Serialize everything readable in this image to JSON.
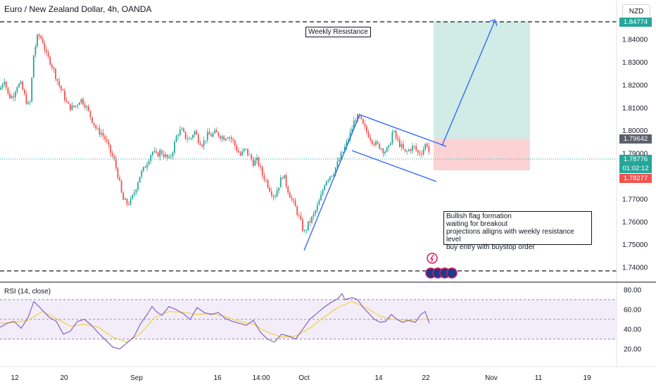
{
  "header": {
    "title": "Euro / New Zealand Dollar, 4h, OANDA",
    "currency_button": "NZD"
  },
  "annotations": {
    "weekly_resistance": "Weekly Resistance",
    "analysis_lines": [
      "Bullish flag formation",
      "waiting for breakout",
      "projections alligns with weekly resistance level",
      "buy entry with buystop order"
    ]
  },
  "price_badges": {
    "target": "1.84774",
    "entry": "1.79642",
    "last_price": "1.78776",
    "countdown": "01:02:12",
    "stop": "1.78277"
  },
  "colors": {
    "up": "#26a69a",
    "down": "#ef5350",
    "trendline": "#2962ff",
    "target_zone": "#d1ece7",
    "stop_zone": "#fbd3d5",
    "rsi": "#7e57c2",
    "rsi_ma": "#f5d040"
  },
  "chart_data": [
    {
      "type": "candlestick",
      "symbol": "Euro / New Zealand Dollar",
      "timeframe": "4h",
      "exchange": "OANDA",
      "currency": "NZD",
      "x_ticks": [
        "12",
        "20",
        "Sep",
        "16",
        "14:00",
        "Oct",
        "14",
        "22",
        "Nov",
        "11",
        "19"
      ],
      "y_ticks": [
        "1.84000",
        "1.83000",
        "1.82000",
        "1.81000",
        "1.80000",
        "1.79000",
        "1.77000",
        "1.76000",
        "1.75000",
        "1.74000"
      ],
      "ylim": [
        1.735,
        1.848
      ],
      "close_path": [
        [
          0,
          1.818
        ],
        [
          6,
          1.823
        ],
        [
          12,
          1.815
        ],
        [
          18,
          1.815
        ],
        [
          24,
          1.82
        ],
        [
          30,
          1.82
        ],
        [
          36,
          1.814
        ],
        [
          42,
          1.81
        ],
        [
          48,
          1.834
        ],
        [
          54,
          1.842
        ],
        [
          60,
          1.84
        ],
        [
          66,
          1.833
        ],
        [
          72,
          1.83
        ],
        [
          78,
          1.825
        ],
        [
          84,
          1.82
        ],
        [
          90,
          1.816
        ],
        [
          96,
          1.811
        ],
        [
          102,
          1.81
        ],
        [
          108,
          1.811
        ],
        [
          114,
          1.814
        ],
        [
          120,
          1.812
        ],
        [
          126,
          1.808
        ],
        [
          132,
          1.804
        ],
        [
          138,
          1.8
        ],
        [
          144,
          1.799
        ],
        [
          150,
          1.796
        ],
        [
          156,
          1.791
        ],
        [
          162,
          1.787
        ],
        [
          168,
          1.78
        ],
        [
          174,
          1.77
        ],
        [
          180,
          1.768
        ],
        [
          186,
          1.769
        ],
        [
          192,
          1.774
        ],
        [
          198,
          1.78
        ],
        [
          204,
          1.783
        ],
        [
          210,
          1.787
        ],
        [
          216,
          1.791
        ],
        [
          222,
          1.789
        ],
        [
          228,
          1.791
        ],
        [
          234,
          1.789
        ],
        [
          240,
          1.787
        ],
        [
          246,
          1.792
        ],
        [
          252,
          1.799
        ],
        [
          258,
          1.8
        ],
        [
          264,
          1.797
        ],
        [
          270,
          1.796
        ],
        [
          276,
          1.8
        ],
        [
          282,
          1.796
        ],
        [
          288,
          1.794
        ],
        [
          294,
          1.798
        ],
        [
          300,
          1.798
        ],
        [
          306,
          1.799
        ],
        [
          312,
          1.798
        ],
        [
          318,
          1.797
        ],
        [
          324,
          1.798
        ],
        [
          330,
          1.796
        ],
        [
          336,
          1.792
        ],
        [
          342,
          1.789
        ],
        [
          348,
          1.792
        ],
        [
          354,
          1.789
        ],
        [
          360,
          1.786
        ],
        [
          366,
          1.787
        ],
        [
          372,
          1.781
        ],
        [
          378,
          1.778
        ],
        [
          384,
          1.774
        ],
        [
          390,
          1.771
        ],
        [
          396,
          1.776
        ],
        [
          402,
          1.781
        ],
        [
          408,
          1.775
        ],
        [
          414,
          1.77
        ],
        [
          420,
          1.766
        ],
        [
          426,
          1.761
        ],
        [
          432,
          1.755
        ],
        [
          438,
          1.759
        ],
        [
          444,
          1.762
        ],
        [
          450,
          1.766
        ],
        [
          456,
          1.771
        ],
        [
          462,
          1.778
        ],
        [
          468,
          1.78
        ],
        [
          474,
          1.782
        ],
        [
          480,
          1.786
        ],
        [
          486,
          1.79
        ],
        [
          492,
          1.794
        ],
        [
          498,
          1.799
        ],
        [
          504,
          1.805
        ],
        [
          510,
          1.806
        ],
        [
          516,
          1.802
        ],
        [
          522,
          1.799
        ],
        [
          528,
          1.796
        ],
        [
          534,
          1.794
        ],
        [
          540,
          1.793
        ],
        [
          546,
          1.791
        ],
        [
          552,
          1.792
        ],
        [
          558,
          1.8
        ],
        [
          564,
          1.796
        ],
        [
          570,
          1.793
        ],
        [
          576,
          1.79
        ],
        [
          582,
          1.792
        ],
        [
          588,
          1.793
        ],
        [
          594,
          1.79
        ],
        [
          600,
          1.791
        ],
        [
          606,
          1.795
        ],
        [
          612,
          1.78776
        ]
      ],
      "levels": {
        "weekly_resistance": 1.84774,
        "entry": 1.79642,
        "stop": 1.78277,
        "support": 1.7385
      }
    },
    {
      "type": "line",
      "title": "RSI (14, close)",
      "y_ticks": [
        "80.00",
        "60.00",
        "40.00",
        "20.00"
      ],
      "ylim": [
        10,
        82
      ],
      "bands": [
        30,
        50,
        70
      ],
      "series": [
        {
          "values": [
            [
              0,
              42
            ],
            [
              10,
              46
            ],
            [
              20,
              48
            ],
            [
              30,
              41
            ],
            [
              40,
              52
            ],
            [
              48,
              68
            ],
            [
              54,
              64
            ],
            [
              62,
              58
            ],
            [
              70,
              52
            ],
            [
              80,
              48
            ],
            [
              90,
              35
            ],
            [
              100,
              38
            ],
            [
              110,
              48
            ],
            [
              120,
              50
            ],
            [
              130,
              44
            ],
            [
              140,
              36
            ],
            [
              150,
              29
            ],
            [
              160,
              22
            ],
            [
              170,
              20
            ],
            [
              180,
              26
            ],
            [
              190,
              32
            ],
            [
              200,
              46
            ],
            [
              210,
              56
            ],
            [
              216,
              63
            ],
            [
              222,
              58
            ],
            [
              230,
              54
            ],
            [
              240,
              63
            ],
            [
              250,
              60
            ],
            [
              260,
              56
            ],
            [
              270,
              50
            ],
            [
              280,
              62
            ],
            [
              290,
              57
            ],
            [
              300,
              55
            ],
            [
              310,
              57
            ],
            [
              320,
              51
            ],
            [
              330,
              48
            ],
            [
              340,
              46
            ],
            [
              350,
              44
            ],
            [
              360,
              49
            ],
            [
              370,
              37
            ],
            [
              380,
              30
            ],
            [
              390,
              27
            ],
            [
              400,
              35
            ],
            [
              410,
              33
            ],
            [
              420,
              30
            ],
            [
              430,
              40
            ],
            [
              440,
              50
            ],
            [
              450,
              56
            ],
            [
              460,
              62
            ],
            [
              470,
              67
            ],
            [
              480,
              71
            ],
            [
              486,
              76
            ],
            [
              490,
              70
            ],
            [
              500,
              72
            ],
            [
              508,
              70
            ],
            [
              516,
              62
            ],
            [
              524,
              56
            ],
            [
              532,
              50
            ],
            [
              540,
              47
            ],
            [
              548,
              48
            ],
            [
              556,
              55
            ],
            [
              564,
              50
            ],
            [
              572,
              47
            ],
            [
              580,
              49
            ],
            [
              590,
              47
            ],
            [
              598,
              55
            ],
            [
              604,
              58
            ],
            [
              610,
              46
            ]
          ]
        },
        {
          "values": [
            [
              0,
              46
            ],
            [
              20,
              47
            ],
            [
              40,
              49
            ],
            [
              60,
              58
            ],
            [
              80,
              51
            ],
            [
              100,
              43
            ],
            [
              120,
              45
            ],
            [
              140,
              42
            ],
            [
              160,
              32
            ],
            [
              180,
              27
            ],
            [
              200,
              36
            ],
            [
              220,
              52
            ],
            [
              240,
              58
            ],
            [
              260,
              57
            ],
            [
              280,
              55
            ],
            [
              300,
              56
            ],
            [
              320,
              53
            ],
            [
              340,
              48
            ],
            [
              360,
              45
            ],
            [
              380,
              37
            ],
            [
              400,
              32
            ],
            [
              420,
              33
            ],
            [
              440,
              41
            ],
            [
              460,
              52
            ],
            [
              480,
              62
            ],
            [
              500,
              68
            ],
            [
              520,
              62
            ],
            [
              540,
              53
            ],
            [
              560,
              50
            ],
            [
              580,
              49
            ],
            [
              600,
              50
            ],
            [
              612,
              50
            ]
          ]
        }
      ]
    }
  ]
}
